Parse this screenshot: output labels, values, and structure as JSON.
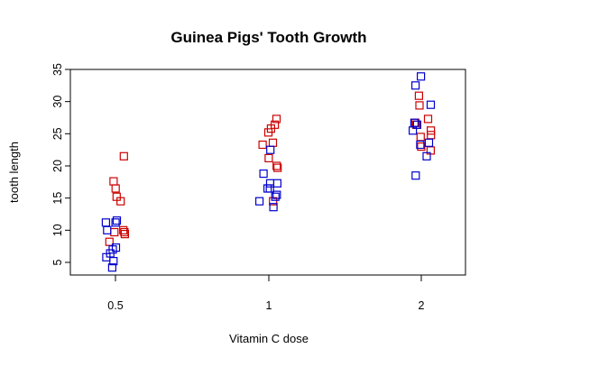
{
  "chart_data": {
    "type": "scatter",
    "title": "Guinea Pigs' Tooth Growth",
    "xlabel": "Vitamin C dose",
    "ylabel": "tooth length",
    "x_tick_labels": [
      "0.5",
      "1",
      "2"
    ],
    "y_ticks": [
      5,
      10,
      15,
      20,
      25,
      30,
      35
    ],
    "ylim": [
      3,
      35
    ],
    "grid": false,
    "legend": "none",
    "marker": "open-square",
    "series": [
      {
        "color": "#cc0000",
        "points": [
          {
            "x": "0.5",
            "y": 15.2
          },
          {
            "x": "0.5",
            "y": 14.5
          },
          {
            "x": "0.5",
            "y": 21.5
          },
          {
            "x": "0.5",
            "y": 17.6
          },
          {
            "x": "0.5",
            "y": 16.5
          },
          {
            "x": "0.5",
            "y": 9.7
          },
          {
            "x": "0.5",
            "y": 10.0
          },
          {
            "x": "0.5",
            "y": 9.4
          },
          {
            "x": "0.5",
            "y": 8.2
          },
          {
            "x": "0.5",
            "y": 9.7
          },
          {
            "x": "1",
            "y": 26.4
          },
          {
            "x": "1",
            "y": 25.8
          },
          {
            "x": "1",
            "y": 27.3
          },
          {
            "x": "1",
            "y": 25.2
          },
          {
            "x": "1",
            "y": 23.6
          },
          {
            "x": "1",
            "y": 23.3
          },
          {
            "x": "1",
            "y": 21.2
          },
          {
            "x": "1",
            "y": 20.0
          },
          {
            "x": "1",
            "y": 19.7
          },
          {
            "x": "1",
            "y": 14.5
          },
          {
            "x": "2",
            "y": 27.3
          },
          {
            "x": "2",
            "y": 30.9
          },
          {
            "x": "2",
            "y": 29.4
          },
          {
            "x": "2",
            "y": 26.4
          },
          {
            "x": "2",
            "y": 26.7
          },
          {
            "x": "2",
            "y": 25.5
          },
          {
            "x": "2",
            "y": 24.8
          },
          {
            "x": "2",
            "y": 24.5
          },
          {
            "x": "2",
            "y": 23.0
          },
          {
            "x": "2",
            "y": 22.4
          }
        ]
      },
      {
        "color": "#0000cc",
        "points": [
          {
            "x": "0.5",
            "y": 11.5
          },
          {
            "x": "0.5",
            "y": 11.2
          },
          {
            "x": "0.5",
            "y": 11.2
          },
          {
            "x": "0.5",
            "y": 10.0
          },
          {
            "x": "0.5",
            "y": 7.3
          },
          {
            "x": "0.5",
            "y": 7.0
          },
          {
            "x": "0.5",
            "y": 6.4
          },
          {
            "x": "0.5",
            "y": 5.8
          },
          {
            "x": "0.5",
            "y": 5.2
          },
          {
            "x": "0.5",
            "y": 4.2
          },
          {
            "x": "1",
            "y": 17.3
          },
          {
            "x": "1",
            "y": 17.3
          },
          {
            "x": "1",
            "y": 16.5
          },
          {
            "x": "1",
            "y": 16.5
          },
          {
            "x": "1",
            "y": 15.5
          },
          {
            "x": "1",
            "y": 15.2
          },
          {
            "x": "1",
            "y": 14.5
          },
          {
            "x": "1",
            "y": 13.6
          },
          {
            "x": "1",
            "y": 18.8
          },
          {
            "x": "1",
            "y": 22.5
          },
          {
            "x": "2",
            "y": 33.9
          },
          {
            "x": "2",
            "y": 32.5
          },
          {
            "x": "2",
            "y": 29.5
          },
          {
            "x": "2",
            "y": 26.4
          },
          {
            "x": "2",
            "y": 25.5
          },
          {
            "x": "2",
            "y": 23.6
          },
          {
            "x": "2",
            "y": 23.3
          },
          {
            "x": "2",
            "y": 21.5
          },
          {
            "x": "2",
            "y": 18.5
          },
          {
            "x": "2",
            "y": 26.7
          }
        ]
      }
    ]
  }
}
